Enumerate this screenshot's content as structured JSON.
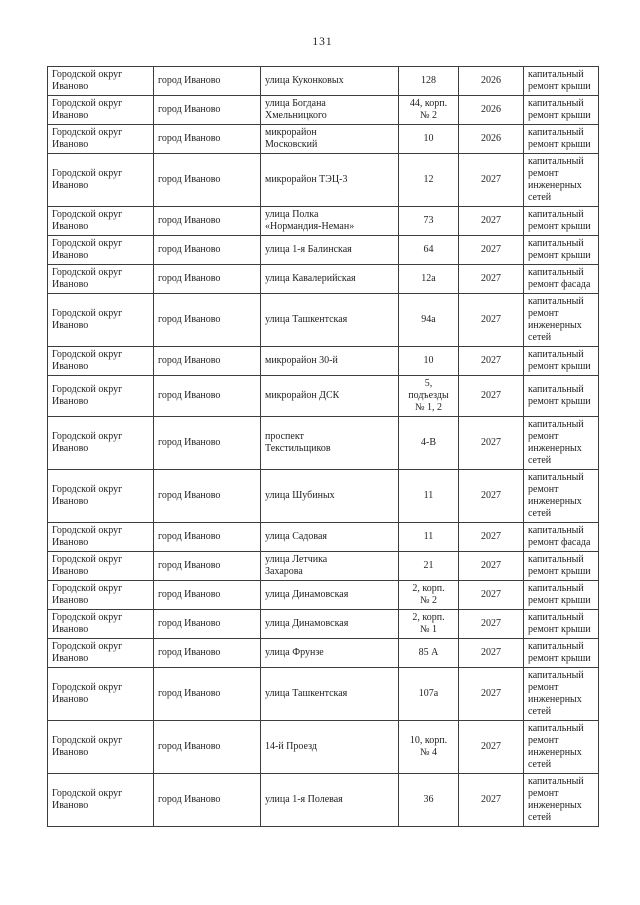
{
  "page": {
    "number": "131"
  },
  "table": {
    "rows": [
      {
        "district": "Городской округ\nИваново",
        "city": "город Иваново",
        "street": "улица Куконковых",
        "house": "128",
        "year": "2026",
        "work": "капитальный\nремонт крыши"
      },
      {
        "district": "Городской округ\nИваново",
        "city": "город Иваново",
        "street": "улица Богдана\nХмельницкого",
        "house": "44, корп.\n№ 2",
        "year": "2026",
        "work": "капитальный\nремонт крыши"
      },
      {
        "district": "Городской округ\nИваново",
        "city": "город Иваново",
        "street": "микрорайон\nМосковский",
        "house": "10",
        "year": "2026",
        "work": "капитальный\nремонт крыши"
      },
      {
        "district": "Городской округ\nИваново",
        "city": "город Иваново",
        "street": "микрорайон ТЭЦ-3",
        "house": "12",
        "year": "2027",
        "work": "капитальный\nремонт\nинженерных\nсетей"
      },
      {
        "district": "Городской округ\nИваново",
        "city": "город Иваново",
        "street": "улица Полка\n«Нормандия-Неман»",
        "house": "73",
        "year": "2027",
        "work": "капитальный\nремонт крыши"
      },
      {
        "district": "Городской округ\nИваново",
        "city": "город Иваново",
        "street": "улица 1-я Балинская",
        "house": "64",
        "year": "2027",
        "work": "капитальный\nремонт крыши"
      },
      {
        "district": "Городской округ\nИваново",
        "city": "город Иваново",
        "street": "улица Кавалерийская",
        "house": "12а",
        "year": "2027",
        "work": "капитальный\nремонт фасада"
      },
      {
        "district": "Городской округ\nИваново",
        "city": "город Иваново",
        "street": "улица Ташкентская",
        "house": "94а",
        "year": "2027",
        "work": "капитальный\nремонт\nинженерных\nсетей"
      },
      {
        "district": "Городской округ\nИваново",
        "city": "город Иваново",
        "street": "микрорайон 30-й",
        "house": "10",
        "year": "2027",
        "work": "капитальный\nремонт крыши"
      },
      {
        "district": "Городской округ\nИваново",
        "city": "город Иваново",
        "street": "микрорайон ДСК",
        "house": "5,\nподъезды\n№ 1, 2",
        "year": "2027",
        "work": "капитальный\nремонт крыши"
      },
      {
        "district": "Городской округ\nИваново",
        "city": "город Иваново",
        "street": "проспект\nТекстильщиков",
        "house": "4-В",
        "year": "2027",
        "work": "капитальный\nремонт\nинженерных\nсетей"
      },
      {
        "district": "Городской округ\nИваново",
        "city": "город Иваново",
        "street": "улица Шубиных",
        "house": "11",
        "year": "2027",
        "work": "капитальный\nремонт\nинженерных\nсетей"
      },
      {
        "district": "Городской округ\nИваново",
        "city": "город Иваново",
        "street": "улица Садовая",
        "house": "11",
        "year": "2027",
        "work": "капитальный\nремонт фасада"
      },
      {
        "district": "Городской округ\nИваново",
        "city": "город Иваново",
        "street": "улица Летчика\nЗахарова",
        "house": "21",
        "year": "2027",
        "work": "капитальный\nремонт крыши"
      },
      {
        "district": "Городской округ\nИваново",
        "city": "город Иваново",
        "street": "улица Динамовская",
        "house": "2, корп.\n№ 2",
        "year": "2027",
        "work": "капитальный\nремонт крыши"
      },
      {
        "district": "Городской округ\nИваново",
        "city": "город Иваново",
        "street": "улица Динамовская",
        "house": "2, корп.\n№ 1",
        "year": "2027",
        "work": "капитальный\nремонт крыши"
      },
      {
        "district": "Городской округ\nИваново",
        "city": "город Иваново",
        "street": "улица Фрунзе",
        "house": "85 А",
        "year": "2027",
        "work": "капитальный\nремонт крыши"
      },
      {
        "district": "Городской округ\nИваново",
        "city": "город Иваново",
        "street": "улица Ташкентская",
        "house": "107а",
        "year": "2027",
        "work": "капитальный\nремонт\nинженерных\nсетей"
      },
      {
        "district": "Городской округ\nИваново",
        "city": "город Иваново",
        "street": "14-й Проезд",
        "house": "10, корп.\n№ 4",
        "year": "2027",
        "work": "капитальный\nремонт\nинженерных\nсетей"
      },
      {
        "district": "Городской округ\nИваново",
        "city": "город Иваново",
        "street": "улица 1-я Полевая",
        "house": "36",
        "year": "2027",
        "work": "капитальный\nремонт\nинженерных\nсетей"
      }
    ]
  }
}
